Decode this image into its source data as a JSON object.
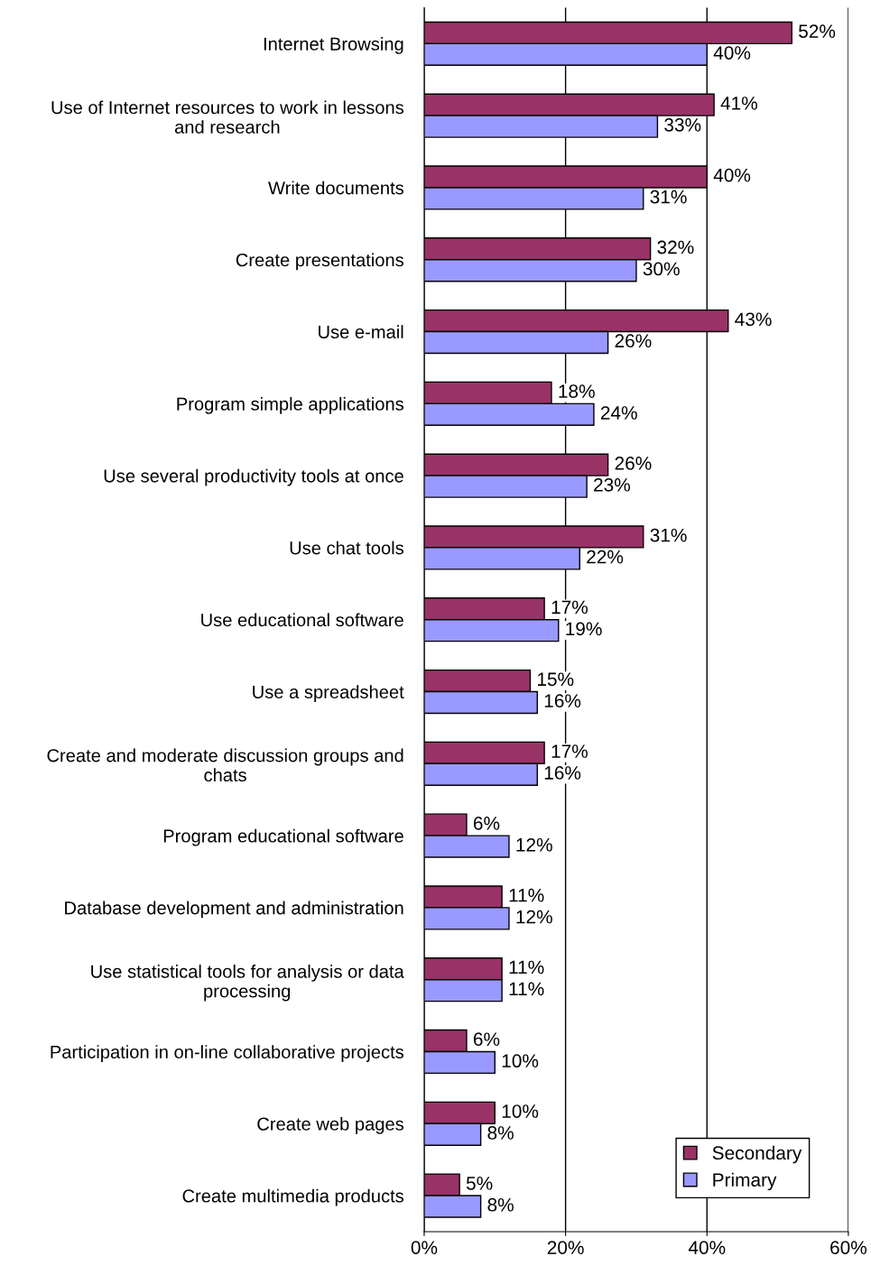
{
  "chart_data": {
    "type": "bar",
    "orientation": "horizontal",
    "categories": [
      "Internet Browsing",
      "Use of Internet resources to work in lessons\nand research",
      "Write documents",
      "Create presentations",
      "Use e-mail",
      "Program simple applications",
      "Use several productivity tools at once",
      "Use chat tools",
      "Use educational software",
      "Use a spreadsheet",
      "Create and moderate discussion groups and\nchats",
      "Program educational software",
      "Database development and administration",
      "Use statistical tools for analysis or data\nprocessing",
      "Participation in on-line collaborative projects",
      "Create web pages",
      "Create multimedia products"
    ],
    "series": [
      {
        "name": "Secondary",
        "color": "#993366",
        "values": [
          52,
          41,
          40,
          32,
          43,
          18,
          26,
          31,
          17,
          15,
          17,
          6,
          11,
          11,
          6,
          10,
          5
        ],
        "value_labels": [
          "52%",
          "41%",
          "40%",
          "32%",
          "43%",
          "18%",
          "26%",
          "31%",
          "17%",
          "15%",
          "17%",
          "6%",
          "11%",
          "11%",
          "6%",
          "10%",
          "5%"
        ]
      },
      {
        "name": "Primary",
        "color": "#9999ff",
        "values": [
          40,
          33,
          31,
          30,
          26,
          24,
          23,
          22,
          19,
          16,
          16,
          12,
          12,
          11,
          10,
          8,
          8
        ],
        "value_labels": [
          "40%",
          "33%",
          "31%",
          "30%",
          "26%",
          "24%",
          "23%",
          "22%",
          "19%",
          "16%",
          "16%",
          "12%",
          "12%",
          "11%",
          "10%",
          "8%",
          "8%"
        ]
      }
    ],
    "xlim": [
      0,
      60
    ],
    "xticks": [
      {
        "value": 0,
        "label": "0%"
      },
      {
        "value": 20,
        "label": "20%"
      },
      {
        "value": 40,
        "label": "40%"
      },
      {
        "value": 60,
        "label": "60%"
      }
    ],
    "grid": "x",
    "legend": "bottom right"
  }
}
